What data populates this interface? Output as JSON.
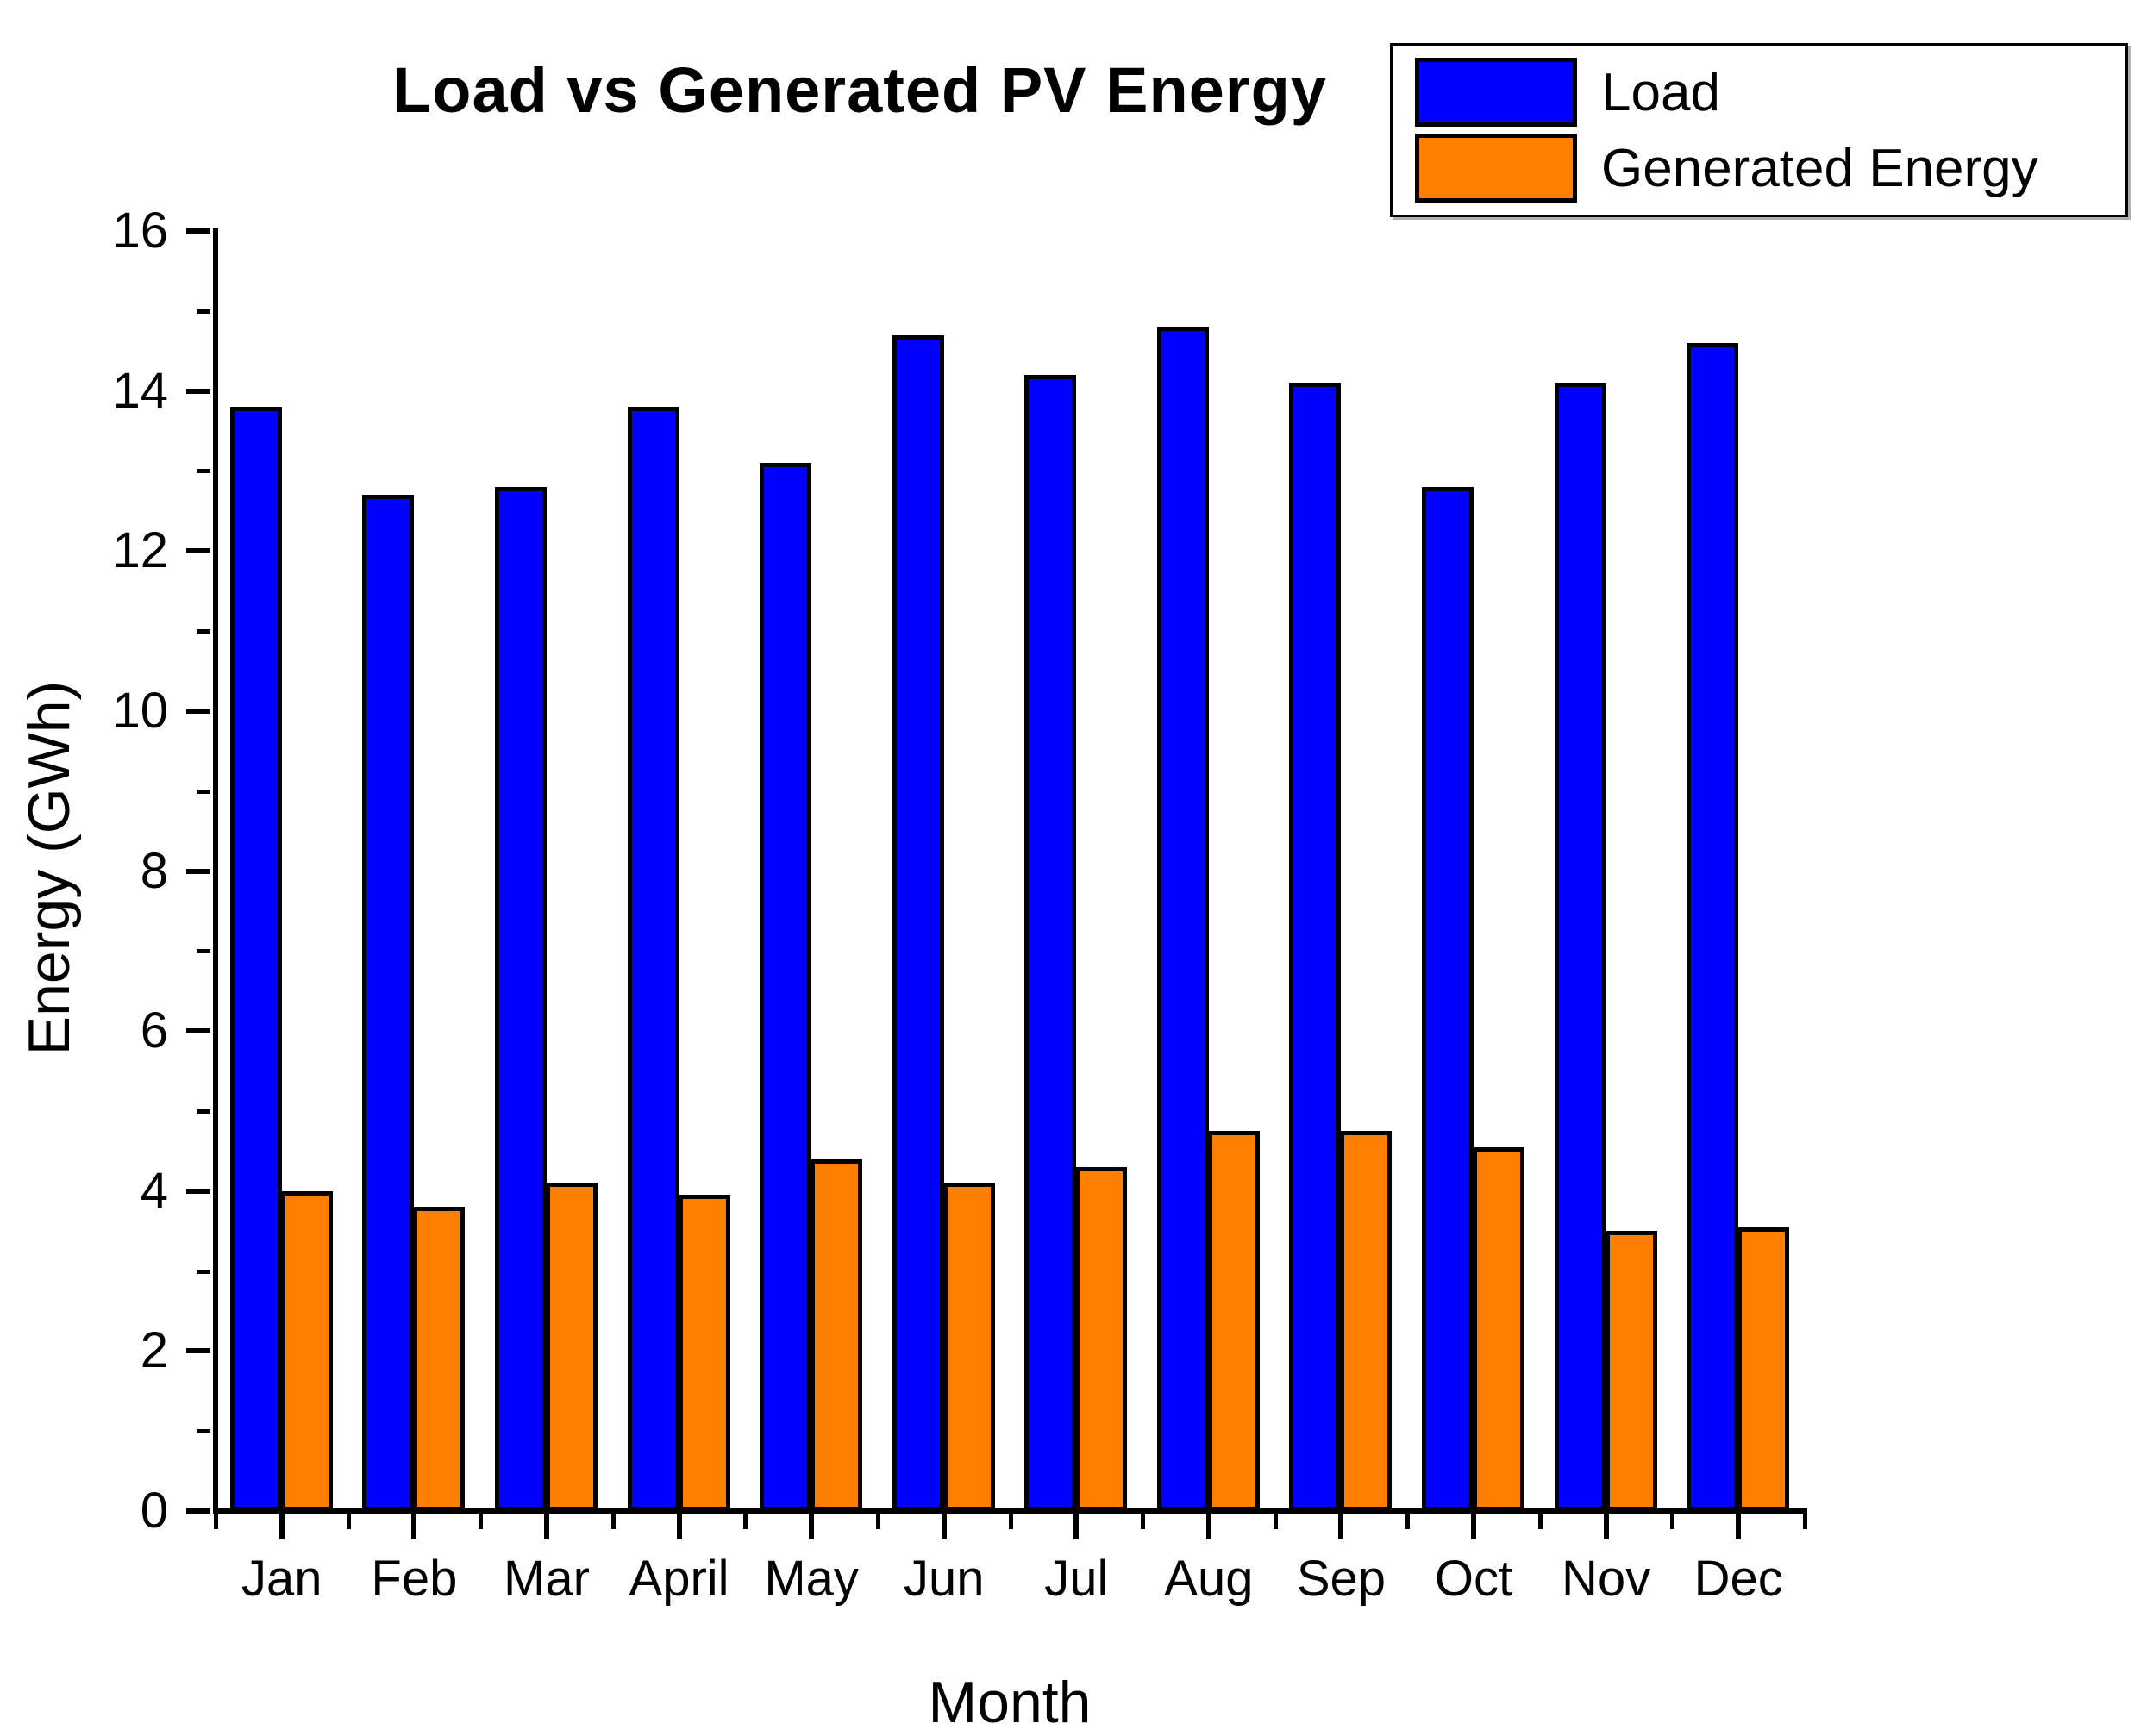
{
  "chart_data": {
    "type": "bar",
    "title": "Load vs Generated PV Energy",
    "xlabel": "Month",
    "ylabel": "Energy (GWh)",
    "categories": [
      "Jan",
      "Feb",
      "Mar",
      "April",
      "May",
      "Jun",
      "Jul",
      "Aug",
      "Sep",
      "Oct",
      "Nov",
      "Dec"
    ],
    "series": [
      {
        "name": "Load",
        "color": "#0000FF",
        "values": [
          13.8,
          12.7,
          12.8,
          13.8,
          13.1,
          14.7,
          14.2,
          14.8,
          14.1,
          12.8,
          14.1,
          14.6
        ]
      },
      {
        "name": "Generated Energy",
        "color": "#FF8000",
        "values": [
          4.0,
          3.8,
          4.1,
          3.95,
          4.4,
          4.1,
          4.3,
          4.75,
          4.75,
          4.55,
          3.5,
          3.55
        ]
      }
    ],
    "ylim": [
      0,
      16
    ],
    "yticks": [
      0,
      2,
      4,
      6,
      8,
      10,
      12,
      14,
      16
    ],
    "y_minor_tick_step": 1,
    "grid": false,
    "legend_position": "top-right",
    "background": "#FFFFFF",
    "bar_outline_color": "#000000"
  }
}
